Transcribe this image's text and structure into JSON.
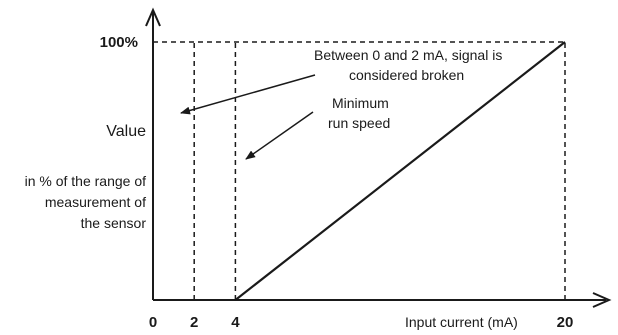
{
  "chart_data": {
    "type": "line",
    "x_ticks": [
      "0",
      "2",
      "4",
      "20"
    ],
    "y_tick": "100%",
    "xlabel": "Input current (mA)",
    "ylabel": "Value",
    "ylabel_note": [
      "in % of the range of",
      "measurement of",
      "the sensor"
    ],
    "xlim": [
      0,
      20
    ],
    "ylim": [
      0,
      100
    ],
    "series": [
      {
        "x": [
          4,
          20
        ],
        "y": [
          0,
          100
        ]
      }
    ],
    "reference_lines_x": [
      2,
      4,
      20
    ],
    "reference_line_y": 100,
    "annotations": {
      "broken": [
        "Between 0 and 2 mA, signal is",
        "considered broken"
      ],
      "minimum": [
        "Minimum",
        "run speed"
      ]
    }
  }
}
